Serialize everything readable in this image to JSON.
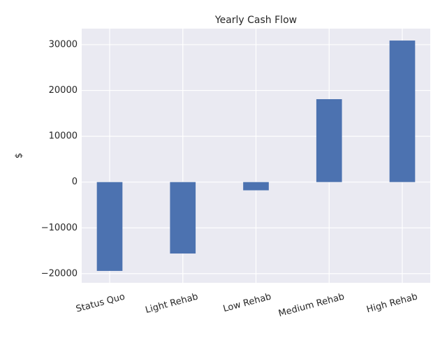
{
  "chart_data": {
    "type": "bar",
    "title": "Yearly Cash Flow",
    "xlabel": "",
    "ylabel": "$",
    "categories": [
      "Status Quo",
      "Light Rehab",
      "Low Rehab",
      "Medium Rehab",
      "High Rehab"
    ],
    "values": [
      -19400,
      -15600,
      -1800,
      18100,
      30900
    ],
    "ylim": [
      -22000,
      33500
    ],
    "yticks": [
      -20000,
      -10000,
      0,
      10000,
      20000,
      30000
    ],
    "ytick_labels": [
      "−20000",
      "−10000",
      "0",
      "10000",
      "20000",
      "30000"
    ],
    "grid": true,
    "legend": "none",
    "colors": {
      "bar": "#4c72b0",
      "background": "#eaeaf2",
      "grid": "#ffffff",
      "text": "#262626"
    }
  }
}
